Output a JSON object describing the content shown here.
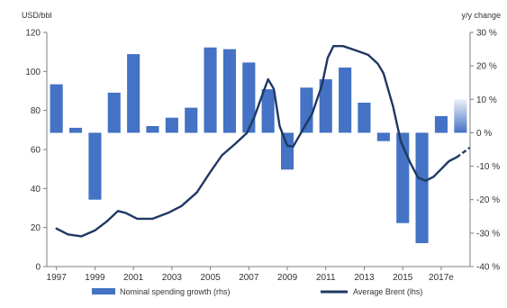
{
  "chart_data": {
    "type": "bar+line",
    "title": "",
    "left_axis": {
      "label": "USD/bbl",
      "min": 0,
      "max": 120,
      "ticks": [
        "0",
        "20",
        "40",
        "60",
        "80",
        "100",
        "120"
      ]
    },
    "right_axis": {
      "label": "y/y change",
      "min": -40,
      "max": 30,
      "ticks": [
        "-40 %",
        "-30 %",
        "-20 %",
        "-10 %",
        "0 %",
        "10 %",
        "20 %",
        "30 %"
      ]
    },
    "x_labels": [
      "1997",
      "1999",
      "2001",
      "2003",
      "2005",
      "2007",
      "2009",
      "2011",
      "2013",
      "2015",
      "2017e"
    ],
    "categories": [
      "1997",
      "1998",
      "1999",
      "2000",
      "2001",
      "2002",
      "2003",
      "2004",
      "2005",
      "2006",
      "2007",
      "2008",
      "2009",
      "2010",
      "2011",
      "2012",
      "2013",
      "2014",
      "2015",
      "2016",
      "2017e",
      "2018e"
    ],
    "series": [
      {
        "name": "Nominal spending growth (rhs)",
        "type": "bar",
        "axis": "right",
        "color": "#4472c4",
        "values": [
          14.5,
          1.5,
          -20,
          12,
          23.5,
          2,
          4.5,
          7.5,
          25.5,
          25,
          21,
          13,
          -11,
          13.5,
          16,
          19.5,
          9,
          -2.5,
          -27,
          -33,
          5,
          10
        ],
        "estimate_from_index": 21
      },
      {
        "name": "Average Brent (lhs)",
        "type": "line",
        "axis": "left",
        "color": "#1f3864",
        "points": [
          [
            1997.0,
            19.5
          ],
          [
            1997.6,
            16.5
          ],
          [
            1998.3,
            15.5
          ],
          [
            1999.0,
            18.5
          ],
          [
            1999.6,
            23
          ],
          [
            2000.2,
            28.5
          ],
          [
            2000.6,
            27.5
          ],
          [
            2001.2,
            24.5
          ],
          [
            2002.0,
            24.5
          ],
          [
            2002.8,
            27.5
          ],
          [
            2003.5,
            31
          ],
          [
            2004.3,
            38
          ],
          [
            2005.0,
            48.5
          ],
          [
            2005.6,
            57
          ],
          [
            2006.3,
            63
          ],
          [
            2006.9,
            68.5
          ],
          [
            2007.3,
            77
          ],
          [
            2007.7,
            88
          ],
          [
            2008.0,
            96
          ],
          [
            2008.3,
            91
          ],
          [
            2008.6,
            72
          ],
          [
            2009.0,
            62
          ],
          [
            2009.3,
            61.5
          ],
          [
            2009.8,
            70
          ],
          [
            2010.3,
            78.5
          ],
          [
            2010.8,
            93
          ],
          [
            2011.1,
            107
          ],
          [
            2011.4,
            113
          ],
          [
            2011.9,
            113
          ],
          [
            2012.5,
            111
          ],
          [
            2013.2,
            108.5
          ],
          [
            2013.7,
            104
          ],
          [
            2014.0,
            99
          ],
          [
            2014.5,
            82
          ],
          [
            2014.9,
            64
          ],
          [
            2015.4,
            53
          ],
          [
            2015.8,
            45.5
          ],
          [
            2016.2,
            44
          ],
          [
            2016.6,
            46
          ],
          [
            2017.0,
            50
          ],
          [
            2017.4,
            54
          ],
          [
            2017.8,
            56
          ]
        ],
        "estimate_points": [
          [
            2017.8,
            56
          ],
          [
            2018.5,
            61
          ]
        ]
      }
    ],
    "legend": {
      "position": "bottom",
      "items": [
        "Nominal spending growth (rhs)",
        "Average Brent (lhs)"
      ]
    },
    "grid": false
  }
}
